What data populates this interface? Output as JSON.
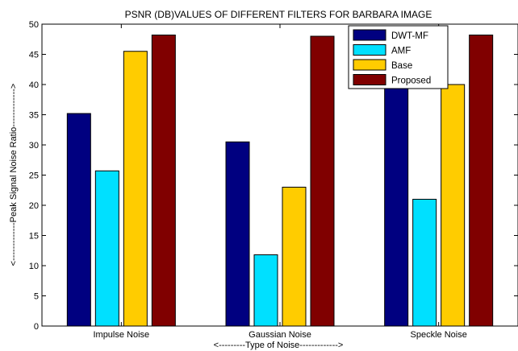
{
  "chart_data": {
    "type": "bar",
    "title": "PSNR (DB)VALUES OF DIFFERENT FILTERS FOR BARBARA IMAGE",
    "xlabel": "<---------Type of Noise------------->",
    "ylabel": "<-------------Peak Signal Noise Ratio------------->",
    "categories": [
      "Impulse Noise",
      "Gaussian Noise",
      "Speckle Noise"
    ],
    "ylim": [
      0,
      50
    ],
    "yticks": [
      0,
      5,
      10,
      15,
      20,
      25,
      30,
      35,
      40,
      45,
      50
    ],
    "legend_position": "top-right",
    "grid": false,
    "series": [
      {
        "name": "DWT-MF",
        "color": "#000080",
        "values": [
          35.2,
          30.5,
          40.0
        ]
      },
      {
        "name": "AMF",
        "color": "#00e0ff",
        "values": [
          25.7,
          11.8,
          21.0
        ]
      },
      {
        "name": "Base",
        "color": "#ffcc00",
        "values": [
          45.5,
          23.0,
          40.0
        ]
      },
      {
        "name": "Proposed",
        "color": "#800000",
        "values": [
          48.2,
          48.0,
          48.2
        ]
      }
    ]
  }
}
